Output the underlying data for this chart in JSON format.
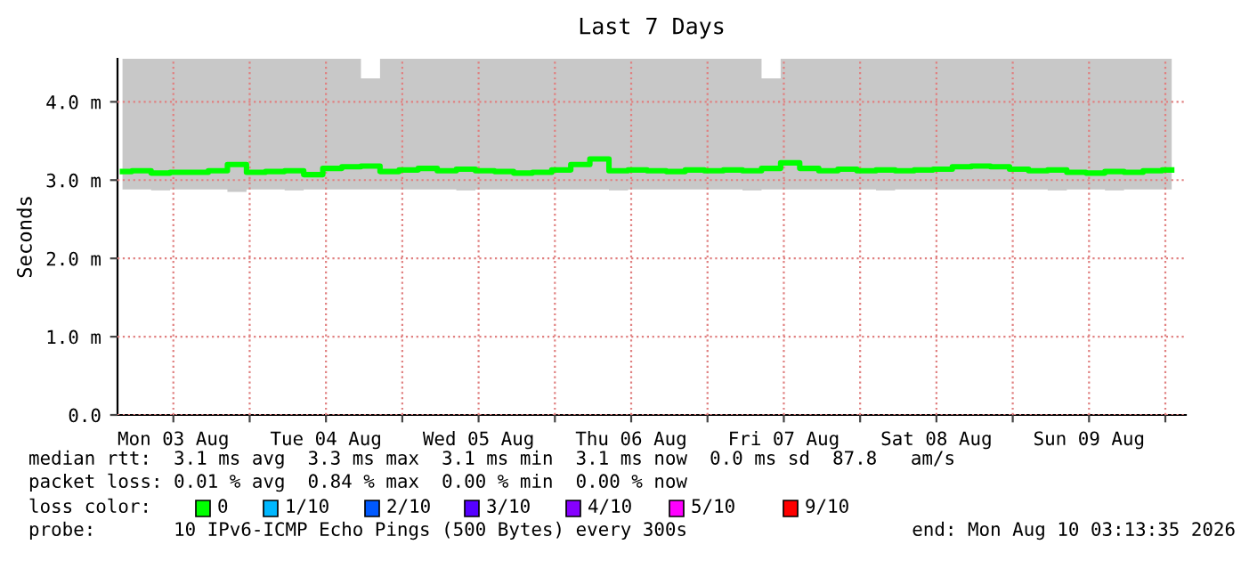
{
  "chart_data": {
    "type": "line",
    "title": "Last 7 Days",
    "ylabel": "Seconds",
    "x": [
      "2026-08-03T04:00",
      "2026-08-03T07:00",
      "2026-08-03T10:00",
      "2026-08-03T13:00",
      "2026-08-03T16:00",
      "2026-08-03T19:00",
      "2026-08-03T22:00",
      "2026-08-04T01:00",
      "2026-08-04T04:00",
      "2026-08-04T07:00",
      "2026-08-04T10:00",
      "2026-08-04T13:00",
      "2026-08-04T16:00",
      "2026-08-04T19:00",
      "2026-08-04T22:00",
      "2026-08-05T01:00",
      "2026-08-05T04:00",
      "2026-08-05T07:00",
      "2026-08-05T10:00",
      "2026-08-05T13:00",
      "2026-08-05T16:00",
      "2026-08-05T19:00",
      "2026-08-05T22:00",
      "2026-08-06T01:00",
      "2026-08-06T04:00",
      "2026-08-06T07:00",
      "2026-08-06T10:00",
      "2026-08-06T13:00",
      "2026-08-06T16:00",
      "2026-08-06T19:00",
      "2026-08-06T22:00",
      "2026-08-07T01:00",
      "2026-08-07T04:00",
      "2026-08-07T07:00",
      "2026-08-07T10:00",
      "2026-08-07T13:00",
      "2026-08-07T16:00",
      "2026-08-07T19:00",
      "2026-08-07T22:00",
      "2026-08-08T01:00",
      "2026-08-08T04:00",
      "2026-08-08T07:00",
      "2026-08-08T10:00",
      "2026-08-08T13:00",
      "2026-08-08T16:00",
      "2026-08-08T19:00",
      "2026-08-08T22:00",
      "2026-08-09T01:00",
      "2026-08-09T04:00",
      "2026-08-09T07:00",
      "2026-08-09T10:00",
      "2026-08-09T13:00",
      "2026-08-09T16:00",
      "2026-08-09T19:00",
      "2026-08-09T22:00",
      "2026-08-10T01:00"
    ],
    "series": [
      {
        "color": "#00ff00",
        "values": [
          3.11,
          3.12,
          3.09,
          3.1,
          3.1,
          3.12,
          3.2,
          3.1,
          3.11,
          3.12,
          3.07,
          3.15,
          3.17,
          3.18,
          3.11,
          3.13,
          3.15,
          3.12,
          3.14,
          3.12,
          3.11,
          3.09,
          3.1,
          3.13,
          3.2,
          3.27,
          3.12,
          3.13,
          3.12,
          3.11,
          3.13,
          3.12,
          3.13,
          3.12,
          3.15,
          3.22,
          3.15,
          3.12,
          3.14,
          3.12,
          3.13,
          3.12,
          3.13,
          3.14,
          3.17,
          3.18,
          3.17,
          3.14,
          3.12,
          3.13,
          3.1,
          3.09,
          3.11,
          3.1,
          3.12,
          3.13
        ],
        "lower": [
          2.88,
          2.88,
          2.87,
          2.88,
          2.88,
          2.88,
          2.85,
          2.88,
          2.88,
          2.87,
          2.88,
          2.88,
          2.88,
          2.88,
          2.88,
          2.88,
          2.88,
          2.88,
          2.87,
          2.88,
          2.88,
          2.88,
          2.88,
          2.88,
          2.88,
          2.88,
          2.87,
          2.88,
          2.88,
          2.88,
          2.88,
          2.88,
          2.88,
          2.87,
          2.88,
          2.88,
          2.88,
          2.88,
          2.88,
          2.88,
          2.87,
          2.88,
          2.88,
          2.88,
          2.88,
          2.88,
          2.88,
          2.88,
          2.88,
          2.87,
          2.88,
          2.88,
          2.87,
          2.88,
          2.88,
          2.88
        ],
        "upper": [
          4.55,
          4.55,
          4.55,
          4.55,
          4.55,
          4.55,
          4.55,
          4.55,
          4.55,
          4.55,
          4.55,
          4.55,
          4.55,
          4.3,
          4.55,
          4.55,
          4.55,
          4.55,
          4.55,
          4.55,
          4.55,
          4.55,
          4.55,
          4.55,
          4.55,
          4.55,
          4.55,
          4.55,
          4.55,
          4.55,
          4.55,
          4.55,
          4.55,
          4.55,
          4.3,
          4.55,
          4.55,
          4.55,
          4.55,
          4.55,
          4.55,
          4.55,
          4.55,
          4.55,
          4.55,
          4.55,
          4.55,
          4.55,
          4.55,
          4.55,
          4.55,
          4.55,
          4.55,
          4.55,
          4.55,
          4.55
        ]
      }
    ],
    "xlim": [
      "2026-08-03T03:13",
      "2026-08-10T03:13"
    ],
    "xticks": [
      {
        "value": "2026-08-03T12:00",
        "label": "Mon 03 Aug"
      },
      {
        "value": "2026-08-04T00:00",
        "label": null
      },
      {
        "value": "2026-08-04T12:00",
        "label": "Tue 04 Aug"
      },
      {
        "value": "2026-08-05T00:00",
        "label": null
      },
      {
        "value": "2026-08-05T12:00",
        "label": "Wed 05 Aug"
      },
      {
        "value": "2026-08-06T00:00",
        "label": null
      },
      {
        "value": "2026-08-06T12:00",
        "label": "Thu 06 Aug"
      },
      {
        "value": "2026-08-07T00:00",
        "label": null
      },
      {
        "value": "2026-08-07T12:00",
        "label": "Fri 07 Aug"
      },
      {
        "value": "2026-08-08T00:00",
        "label": null
      },
      {
        "value": "2026-08-08T12:00",
        "label": "Sat 08 Aug"
      },
      {
        "value": "2026-08-09T00:00",
        "label": null
      },
      {
        "value": "2026-08-09T12:00",
        "label": "Sun 09 Aug"
      },
      {
        "value": "2026-08-10T00:00",
        "label": null
      }
    ],
    "ylim": [
      0,
      4.55
    ],
    "yticks": [
      {
        "value": 0,
        "label": "0.0"
      },
      {
        "value": 1,
        "label": "1.0 m"
      },
      {
        "value": 2,
        "label": "2.0 m"
      },
      {
        "value": 3,
        "label": "3.0 m"
      },
      {
        "value": 4,
        "label": "4.0 m"
      }
    ],
    "grid": true,
    "marker": "none",
    "line_style": "solid",
    "annotations": [
      "median rtt:  3.1 ms avg  3.3 ms max  3.1 ms min  3.1 ms now  0.0 ms sd  87.8   am/s",
      "packet loss: 0.01 % avg  0.84 % max  0.00 % min  0.00 % now",
      "loss color:",
      "0",
      "1/10",
      "2/10",
      "3/10",
      "4/10",
      "5/10",
      "9/10",
      "probe:       10 IPv6-ICMP Echo Pings (500 Bytes) every 300s",
      "end: Mon Aug 10 03:13:35 2026"
    ]
  }
}
